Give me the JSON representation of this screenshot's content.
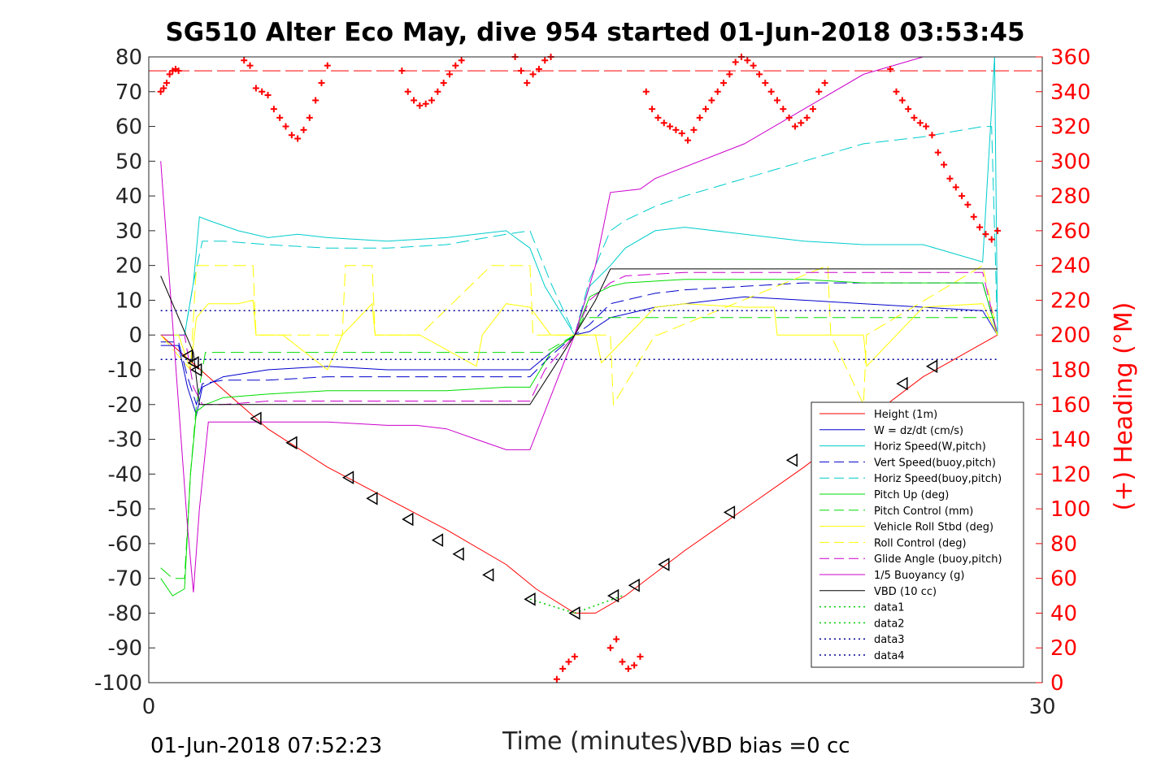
{
  "chart_data": {
    "type": "line",
    "title": "SG510 Alter Eco May, dive 954 started 01-Jun-2018 03:53:45",
    "xlabel": "Time (minutes)",
    "ylabel_right": "(+) Heading (°M)",
    "xlim": [
      0,
      30
    ],
    "xticks": [
      "0",
      "30"
    ],
    "ylim": [
      -100,
      80
    ],
    "yticks": [
      "80",
      "70",
      "60",
      "50",
      "40",
      "30",
      "20",
      "10",
      "0",
      "-10",
      "-20",
      "-30",
      "-40",
      "-50",
      "-60",
      "-70",
      "-80",
      "-90",
      "-100"
    ],
    "ylim_right": [
      0,
      360
    ],
    "yticks_right": [
      "360",
      "340",
      "320",
      "300",
      "280",
      "260",
      "240",
      "220",
      "200",
      "180",
      "160",
      "140",
      "120",
      "100",
      "80",
      "60",
      "40",
      "20",
      "0"
    ],
    "footer_left": "01-Jun-2018 07:52:23",
    "footer_right": "VBD bias =0 cc",
    "legend_position": "bottom-right",
    "series": [
      {
        "name": "Height (1m)",
        "color": "#ff0000",
        "style": "solid",
        "x": [
          0.4,
          1.2,
          2.0,
          4.0,
          6.0,
          8.0,
          10.0,
          12.0,
          13.0,
          14.3,
          15.0,
          16.0,
          18.0,
          20.0,
          22.0,
          24.0,
          26.0,
          28.5
        ],
        "y": [
          0,
          -6,
          -12,
          -27,
          -38,
          -47,
          -56,
          -66,
          -73,
          -80,
          -80,
          -75,
          -62,
          -50,
          -38,
          -25,
          -12,
          0
        ]
      },
      {
        "name": "W = dz/dt (cm/s)",
        "color": "#0000cc",
        "style": "solid",
        "x": [
          0.4,
          1.0,
          1.3,
          1.6,
          1.8,
          2.5,
          4.0,
          6.0,
          8.0,
          10.0,
          12.0,
          12.8,
          13.5,
          14.3,
          14.8,
          15.5,
          16.0,
          17.0,
          18.0,
          20.0,
          22.0,
          24.0,
          26.0,
          28.0,
          28.5
        ],
        "y": [
          -3,
          -3,
          -15,
          -23,
          -15,
          -12,
          -10,
          -9,
          -10,
          -10,
          -10,
          -10,
          -5,
          0,
          1,
          5,
          6,
          8,
          9,
          11,
          10,
          9,
          8,
          7,
          0
        ]
      },
      {
        "name": "Horiz Speed(W,pitch)",
        "color": "#00cccc",
        "style": "solid",
        "x": [
          0.4,
          1.2,
          1.5,
          1.7,
          2.0,
          3.0,
          4.0,
          5.0,
          6.0,
          8.0,
          10.0,
          12.0,
          12.8,
          13.3,
          13.8,
          14.3,
          14.8,
          15.5,
          16.0,
          17.0,
          18.0,
          20.0,
          22.0,
          24.0,
          26.0,
          28.0,
          28.4,
          28.5
        ],
        "y": [
          0,
          0,
          15,
          34,
          33,
          30,
          28,
          29,
          28,
          27,
          28,
          30,
          25,
          14,
          7,
          0,
          14,
          20,
          25,
          30,
          31,
          29,
          27,
          26,
          26,
          21,
          80,
          0
        ]
      },
      {
        "name": "Vert Speed(buoy,pitch)",
        "color": "#0000cc",
        "style": "dashed",
        "x": [
          0.4,
          1.0,
          1.3,
          1.6,
          1.8,
          2.5,
          4.0,
          6.0,
          8.0,
          10.0,
          12.0,
          12.8,
          13.5,
          14.3,
          14.8,
          15.5,
          16.0,
          17.0,
          18.0,
          20.0,
          22.0,
          24.0,
          26.0,
          28.0,
          28.5
        ],
        "y": [
          -2,
          -2,
          -12,
          -20,
          -14,
          -13,
          -13,
          -12,
          -12,
          -12,
          -12,
          -12,
          -6,
          0,
          3,
          9,
          10,
          12,
          13,
          14,
          15,
          15,
          15,
          15,
          0
        ]
      },
      {
        "name": "Horiz Speed(buoy,pitch)",
        "color": "#00cccc",
        "style": "dashed",
        "x": [
          0.4,
          1.2,
          1.5,
          1.8,
          2.5,
          4.0,
          6.0,
          8.0,
          10.0,
          12.0,
          12.8,
          13.5,
          14.3,
          14.8,
          15.5,
          16.0,
          17.0,
          18.0,
          20.0,
          22.0,
          24.0,
          26.0,
          28.0,
          28.3,
          28.5
        ],
        "y": [
          0,
          0,
          15,
          27,
          27,
          26,
          25,
          25,
          26,
          29,
          30,
          15,
          0,
          16,
          30,
          33,
          37,
          40,
          45,
          50,
          55,
          57,
          60,
          60,
          0
        ]
      },
      {
        "name": "Pitch Up (deg)",
        "color": "#00dd00",
        "style": "solid",
        "x": [
          0.4,
          0.8,
          1.2,
          1.4,
          1.6,
          1.9,
          2.5,
          4.0,
          6.0,
          8.0,
          10.0,
          12.0,
          12.8,
          13.5,
          14.3,
          14.8,
          15.5,
          16.0,
          18.0,
          20.0,
          22.0,
          24.0,
          26.0,
          28.0,
          28.5
        ],
        "y": [
          -70,
          -75,
          -73,
          -40,
          -22,
          -20,
          -18,
          -17,
          -16,
          -16,
          -16,
          -15,
          -15,
          -5,
          0,
          11,
          14,
          15,
          16,
          16,
          16,
          15,
          15,
          15,
          0
        ]
      },
      {
        "name": "Pitch Control (mm)",
        "color": "#00dd00",
        "style": "dashed",
        "x": [
          0.4,
          0.8,
          1.2,
          1.4,
          1.6,
          1.9,
          2.5,
          12.8,
          13.3,
          14.3,
          14.6,
          28.5
        ],
        "y": [
          -67,
          -70,
          -70,
          -40,
          -20,
          -5,
          -5,
          -5,
          -5,
          0,
          5,
          5
        ]
      },
      {
        "name": "Vehicle Roll Stbd (deg)",
        "color": "#ffff00",
        "style": "solid",
        "x": [
          0.4,
          1.0,
          1.4,
          1.6,
          2.0,
          3.0,
          3.5,
          3.6,
          4.5,
          6.0,
          6.5,
          7.5,
          7.6,
          9.0,
          9.1,
          11.0,
          11.2,
          12.0,
          12.8,
          13.5,
          14.3,
          15.0,
          15.2,
          17.0,
          18.0,
          20.0,
          21.0,
          21.1,
          24.0,
          24.1,
          26.0,
          28.0,
          28.5
        ],
        "y": [
          0,
          0,
          -10,
          5,
          9,
          9,
          10,
          0,
          0,
          -10,
          0,
          9,
          0,
          0,
          0,
          -9,
          0,
          9,
          8,
          0,
          0,
          0,
          -8,
          8,
          9,
          8,
          8,
          0,
          0,
          -9,
          8,
          9,
          0
        ]
      },
      {
        "name": "Roll Control (deg)",
        "color": "#ffff00",
        "style": "dashed",
        "x": [
          0.4,
          1.4,
          1.6,
          3.0,
          3.5,
          3.6,
          6.5,
          6.6,
          7.5,
          7.6,
          9.0,
          9.1,
          11.5,
          11.6,
          12.8,
          12.9,
          14.3,
          15.5,
          15.6,
          17.0,
          17.1,
          22.8,
          22.9,
          24.0,
          24.1,
          28.0,
          28.5
        ],
        "y": [
          0,
          -10,
          20,
          20,
          20,
          0,
          0,
          20,
          20,
          0,
          0,
          0,
          20,
          20,
          20,
          0,
          0,
          0,
          -20,
          0,
          0,
          20,
          0,
          -20,
          0,
          20,
          0
        ]
      },
      {
        "name": "Glide Angle (buoy,pitch)",
        "color": "#cc00cc",
        "style": "dashed",
        "x": [
          0.4,
          1.2,
          1.5,
          1.8,
          2.5,
          4.0,
          6.0,
          8.0,
          10.0,
          12.0,
          12.8,
          13.3,
          14.3,
          14.8,
          15.5,
          16.0,
          18.0,
          20.0,
          22.0,
          24.0,
          26.0,
          28.0,
          28.5
        ],
        "y": [
          0,
          0,
          -15,
          -20,
          -20,
          -19,
          -19,
          -19,
          -19,
          -19,
          -19,
          -10,
          0,
          10,
          15,
          17,
          18,
          18,
          18,
          18,
          18,
          18,
          0
        ]
      },
      {
        "name": "1/5 Buoyancy (g)",
        "color": "#cc00cc",
        "style": "solid",
        "x": [
          0.4,
          1.3,
          1.5,
          1.7,
          2.0,
          4.0,
          6.0,
          8.0,
          9.0,
          10.0,
          11.0,
          12.0,
          12.8,
          14.3,
          15.0,
          15.5,
          16.5,
          17.0,
          20.0,
          22.0,
          24.0,
          26.0
        ],
        "y": [
          50,
          -55,
          -74,
          -50,
          -25,
          -25,
          -25,
          -26,
          -26,
          -27,
          -30,
          -33,
          -33,
          0,
          20,
          41,
          42,
          45,
          55,
          65,
          75,
          80
        ]
      },
      {
        "name": "VBD (10 cc)",
        "color": "#000000",
        "style": "solid",
        "x": [
          0.4,
          1.5,
          1.7,
          2.0,
          12.8,
          14.3,
          15.0,
          15.5,
          28.5
        ],
        "y": [
          17,
          -5,
          -20,
          -20,
          -20,
          0,
          10,
          19,
          19
        ]
      },
      {
        "name": "data1",
        "color": "#00cc00",
        "style": "dotted",
        "x": [
          12.8,
          14.3
        ],
        "y": [
          -76,
          -80
        ]
      },
      {
        "name": "data2",
        "color": "#00cc00",
        "style": "dotted",
        "x": [
          14.3,
          15.9
        ],
        "y": [
          -80,
          -75
        ]
      },
      {
        "name": "data3",
        "color": "#000099",
        "style": "dotted",
        "x": [
          0.4,
          28.5
        ],
        "y": [
          7,
          7
        ]
      },
      {
        "name": "data4",
        "color": "#000099",
        "style": "dotted",
        "x": [
          0.4,
          28.5
        ],
        "y": [
          -7,
          -7
        ]
      }
    ],
    "reference_lines": [
      {
        "color": "#ff0000",
        "style": "dashdot",
        "axis": "right",
        "y": 352
      }
    ],
    "heading_points": {
      "color": "#ff0000",
      "marker": "+",
      "axis": "right",
      "x": [
        0.4,
        0.5,
        0.6,
        0.7,
        0.8,
        0.9,
        1.0,
        3.2,
        3.4,
        3.6,
        3.8,
        4.0,
        4.2,
        4.4,
        4.6,
        4.8,
        5.0,
        5.2,
        5.4,
        5.6,
        5.8,
        6.0,
        8.5,
        8.7,
        8.9,
        9.1,
        9.3,
        9.5,
        9.7,
        9.9,
        10.1,
        10.3,
        10.5,
        12.3,
        12.5,
        12.7,
        12.9,
        13.1,
        13.3,
        13.5,
        13.7,
        13.9,
        14.1,
        14.3,
        15.5,
        15.7,
        15.9,
        16.1,
        16.3,
        16.5,
        16.7,
        16.9,
        17.1,
        17.3,
        17.5,
        17.7,
        17.9,
        18.1,
        18.3,
        18.5,
        18.7,
        18.9,
        19.1,
        19.3,
        19.5,
        19.7,
        19.9,
        20.1,
        20.3,
        20.5,
        20.7,
        20.9,
        21.1,
        21.3,
        21.5,
        21.7,
        21.9,
        22.1,
        22.3,
        22.5,
        22.7,
        24.9,
        25.1,
        25.3,
        25.5,
        25.7,
        25.9,
        26.1,
        26.3,
        26.5,
        26.7,
        26.9,
        27.1,
        27.3,
        27.5,
        27.7,
        27.9,
        28.1,
        28.3,
        28.5
      ],
      "y": [
        340,
        342,
        345,
        350,
        352,
        353,
        352,
        358,
        355,
        342,
        340,
        338,
        330,
        325,
        320,
        315,
        313,
        318,
        325,
        335,
        345,
        355,
        352,
        340,
        335,
        332,
        333,
        335,
        340,
        345,
        350,
        355,
        358,
        360,
        352,
        345,
        350,
        353,
        358,
        360,
        2,
        8,
        12,
        15,
        20,
        25,
        12,
        8,
        10,
        15,
        340,
        330,
        325,
        322,
        320,
        318,
        316,
        312,
        318,
        325,
        330,
        335,
        340,
        345,
        350,
        357,
        360,
        358,
        355,
        350,
        345,
        340,
        335,
        330,
        325,
        320,
        322,
        325,
        330,
        340,
        345,
        353,
        340,
        335,
        330,
        325,
        322,
        320,
        315,
        305,
        298,
        290,
        285,
        280,
        275,
        268,
        262,
        258,
        255,
        260
      ]
    },
    "triangle_markers": {
      "color": "#000000",
      "marker": "triangle-left",
      "x": [
        1.3,
        1.5,
        1.6,
        3.6,
        4.8,
        6.7,
        7.5,
        8.7,
        9.7,
        10.4,
        11.4,
        12.8,
        14.3,
        15.6,
        16.3,
        17.3,
        19.5,
        21.6,
        25.3,
        26.3
      ],
      "y": [
        -6,
        -8,
        -10,
        -24,
        -31,
        -41,
        -47,
        -53,
        -59,
        -63,
        -69,
        -76,
        -80,
        -75,
        -72,
        -66,
        -51,
        -36,
        -14,
        -9
      ]
    }
  }
}
